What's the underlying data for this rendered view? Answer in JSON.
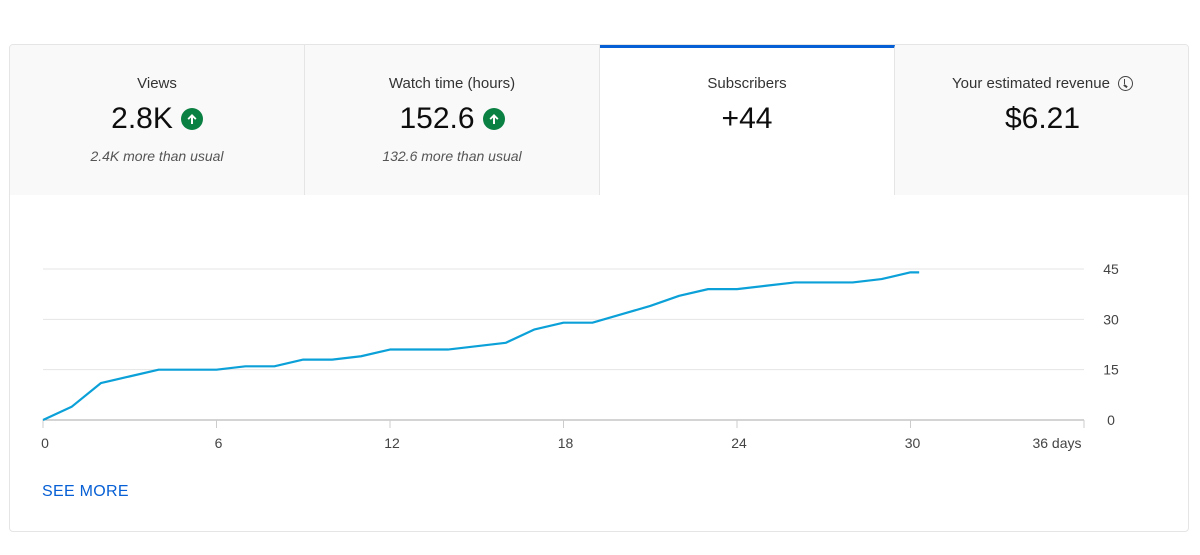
{
  "metrics": [
    {
      "label": "Views",
      "value": "2.8K",
      "trend": "up",
      "note": "2.4K more than usual"
    },
    {
      "label": "Watch time (hours)",
      "value": "152.6",
      "trend": "up",
      "note": "132.6 more than usual"
    },
    {
      "label": "Subscribers",
      "value": "+44",
      "selected": true
    },
    {
      "label": "Your estimated revenue",
      "value": "$6.21",
      "icon": "clock-icon"
    }
  ],
  "colors": {
    "accent": "#065fd4",
    "line": "#0ba1d8",
    "trend_up": "#0b8043"
  },
  "see_more": "SEE MORE",
  "chart_data": {
    "type": "line",
    "x": [
      0,
      1,
      2,
      3,
      4,
      5,
      6,
      7,
      8,
      9,
      10,
      11,
      12,
      13,
      14,
      15,
      16,
      17,
      18,
      19,
      20,
      21,
      22,
      23,
      24,
      25,
      26,
      27,
      28,
      29,
      30,
      30.3
    ],
    "series": [
      {
        "values": [
          0,
          4,
          11,
          13,
          15,
          15,
          15,
          16,
          16,
          18,
          18,
          19,
          21,
          21,
          21,
          22,
          23,
          27,
          29,
          29,
          31.5,
          34,
          37,
          39,
          39,
          40,
          41,
          41,
          41,
          42,
          44,
          44
        ]
      }
    ],
    "xlim": [
      0,
      36
    ],
    "ylim": [
      0,
      45
    ],
    "xticks": [
      "0",
      "6",
      "12",
      "18",
      "24",
      "30",
      "36 days"
    ],
    "xtick_values": [
      0,
      6,
      12,
      18,
      24,
      30,
      36
    ],
    "yticks": [
      "0",
      "15",
      "30",
      "45"
    ],
    "ytick_values": [
      0,
      15,
      30,
      45
    ],
    "grid": true
  }
}
